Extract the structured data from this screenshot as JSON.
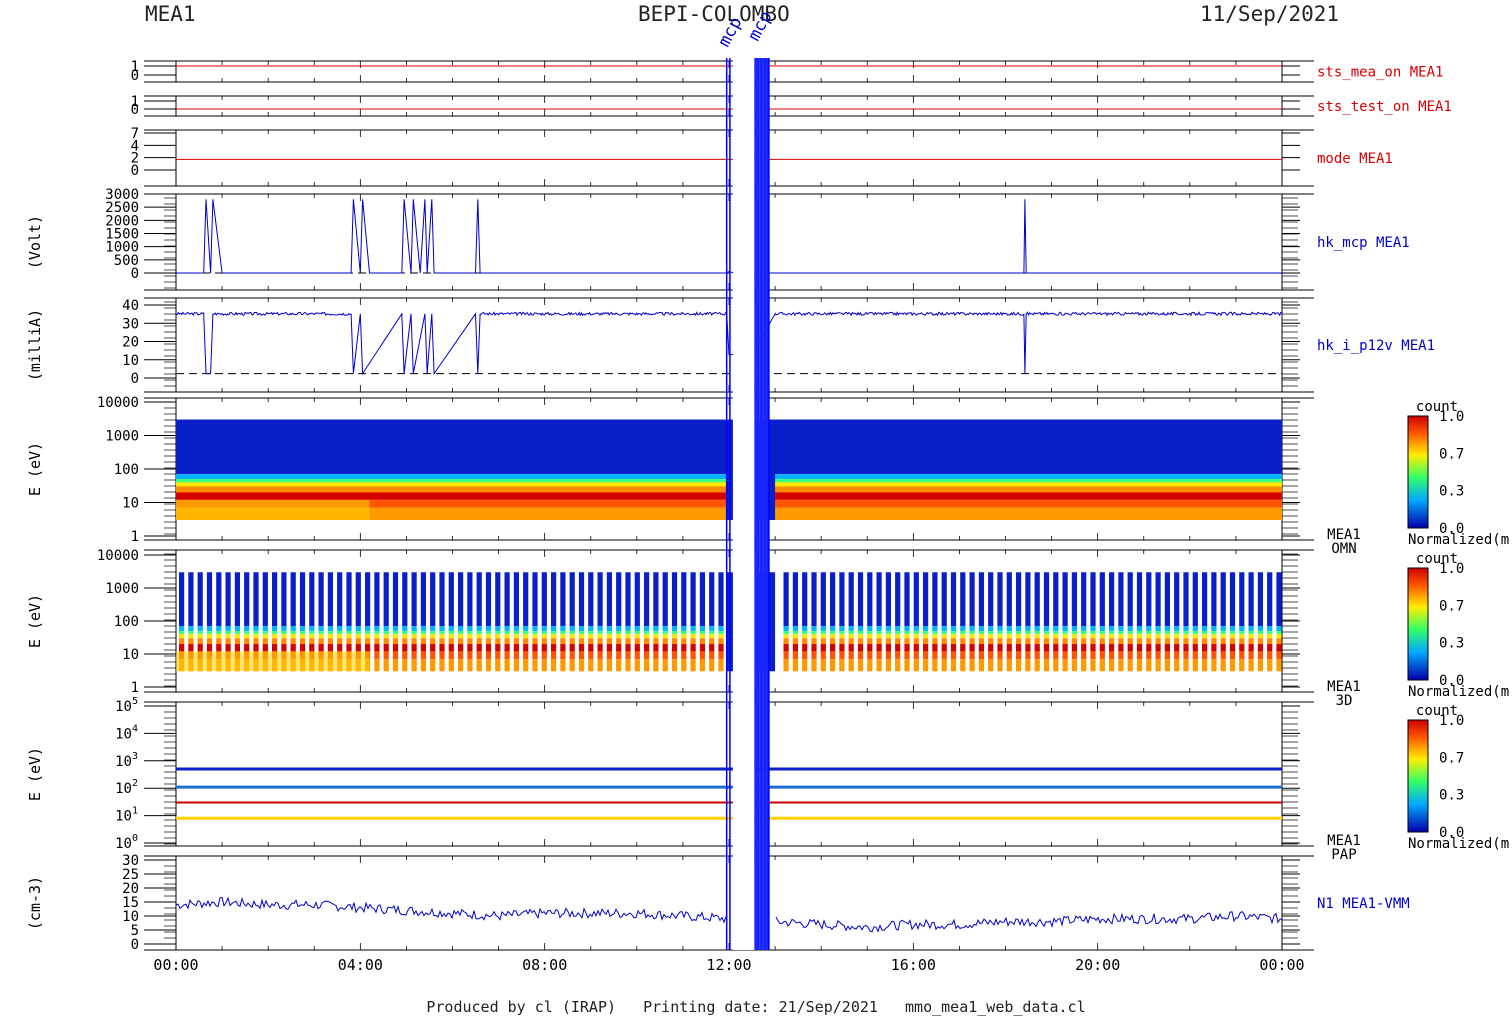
{
  "header": {
    "left": "MEA1",
    "center": "BEPI-COLOMBO",
    "right": "11/Sep/2021"
  },
  "footer": {
    "text": "Produced by cl (IRAP)   Printing date: 21/Sep/2021   mmo_mea1_web_data.cl"
  },
  "colors": {
    "blue": "#0000cc",
    "red": "#dd0000",
    "axis": "#000000"
  },
  "chart_data": [
    {
      "type": "line",
      "id": "sts_mea_on",
      "label": "sts_mea_on MEA1",
      "label_color": "#dd0000",
      "yticks": [
        "1",
        "0"
      ],
      "ylim": [
        0,
        1
      ],
      "series": [
        {
          "values": [
            1,
            1
          ]
        }
      ]
    },
    {
      "type": "line",
      "id": "sts_test_on",
      "label": "sts_test_on MEA1",
      "label_color": "#dd0000",
      "yticks": [
        "1",
        "0"
      ],
      "ylim": [
        0,
        1
      ],
      "series": [
        {
          "values": [
            0,
            0
          ]
        }
      ]
    },
    {
      "type": "line",
      "id": "mode",
      "label": "mode MEA1",
      "label_color": "#dd0000",
      "yticks": [
        "7",
        "4",
        "2",
        "0"
      ],
      "ylim": [
        0,
        7
      ],
      "series": [
        {
          "values": [
            2,
            2
          ]
        }
      ]
    },
    {
      "type": "line",
      "id": "hk_mcp",
      "label": "hk_mcp MEA1",
      "label_color": "#0000cc",
      "ylabel": "(Volt)",
      "yticks": [
        "3000",
        "2500",
        "2000",
        "1500",
        "1000",
        "500",
        "0"
      ],
      "ylim": [
        0,
        3000
      ],
      "series": [
        {
          "x": [
            0,
            0.6,
            0.65,
            0.75,
            0.8,
            1,
            3.8,
            3.85,
            4,
            4.05,
            4.2,
            4.9,
            4.95,
            5.1,
            5.15,
            5.3,
            5.4,
            5.45,
            5.55,
            5.6,
            6.5,
            6.55,
            6.6,
            11.95,
            12.0,
            12.1,
            12.2,
            13.0,
            18.4,
            18.42,
            18.45,
            24
          ],
          "y": [
            0,
            0,
            2800,
            0,
            2800,
            0,
            0,
            2800,
            0,
            2800,
            0,
            0,
            2800,
            0,
            2800,
            0,
            2800,
            0,
            2800,
            0,
            0,
            2800,
            0,
            0,
            60,
            0,
            0,
            0,
            0,
            2800,
            0,
            0
          ]
        }
      ]
    },
    {
      "type": "line",
      "id": "hk_i_p12v",
      "label": "hk_i_p12v MEA1",
      "label_color": "#0000cc",
      "ylabel": "(milliA)",
      "yticks": [
        "40",
        "30",
        "20",
        "10",
        "0"
      ],
      "ylim": [
        -3,
        47
      ],
      "series": [
        {
          "name": "current",
          "values_note": "",
          "x": [
            0,
            0.6,
            0.65,
            0.75,
            0.8,
            3.8,
            3.85,
            4,
            4.05,
            4.9,
            4.95,
            5.1,
            5.15,
            5.4,
            5.45,
            5.55,
            5.6,
            6.5,
            6.55,
            6.6,
            11.95,
            12.0,
            12.5,
            13.0,
            18.4,
            18.42,
            18.45,
            24
          ],
          "y": [
            41,
            41,
            0,
            0,
            41,
            41,
            0,
            41,
            0,
            41,
            0,
            41,
            0,
            41,
            0,
            41,
            0,
            41,
            0,
            41,
            41,
            13,
            13,
            41,
            41,
            0,
            41,
            41
          ]
        }
      ]
    },
    {
      "type": "heatmap",
      "id": "omn",
      "label": "MEA1",
      "label2": "OMN",
      "ylabel": "E (eV)",
      "yticks": [
        "10000",
        "1000",
        "100",
        "10",
        "1"
      ],
      "ylim": [
        1,
        10000
      ],
      "scale": "log",
      "colorbar": {
        "title": "count",
        "ticks": [
          "1.0",
          "0.7",
          "0.3",
          "0.0"
        ],
        "label": "Normalized(m"
      }
    },
    {
      "type": "heatmap",
      "id": "d3",
      "label": "MEA1",
      "label2": "3D",
      "ylabel": "E (eV)",
      "yticks": [
        "10000",
        "1000",
        "100",
        "10",
        "1"
      ],
      "ylim": [
        1,
        10000
      ],
      "scale": "log",
      "colorbar": {
        "title": "count",
        "ticks": [
          "1.0",
          "0.7",
          "0.3",
          "0.0"
        ],
        "label": "Normalized(m"
      }
    },
    {
      "type": "heatmap",
      "id": "pap",
      "label": "MEA1",
      "label2": "PAP",
      "ylabel": "E (eV)",
      "yticks": [
        "10^5",
        "10^4",
        "10^3",
        "10^2",
        "10^1",
        "10^0"
      ],
      "ylim": [
        1,
        100000
      ],
      "scale": "log",
      "colorbar": {
        "title": "count",
        "ticks": [
          "1.0",
          "0.7",
          "0.3",
          "0.0"
        ],
        "label": "Normalized(m"
      }
    },
    {
      "type": "line",
      "id": "n1",
      "label": "N1 MEA1-VMM",
      "label_color": "#0000cc",
      "ylabel": "(cm-3)",
      "yticks": [
        "30",
        "25",
        "20",
        "15",
        "10",
        "5",
        "0"
      ],
      "ylim": [
        0,
        30
      ],
      "series": [
        {
          "x": [
            0,
            1,
            2,
            3,
            4,
            5,
            6,
            7,
            8,
            9,
            10,
            11,
            12,
            13,
            14,
            15,
            16,
            17,
            18,
            19,
            20,
            21,
            22,
            23,
            24
          ],
          "y": [
            14,
            15,
            14,
            14,
            13,
            12,
            11,
            10,
            11,
            11,
            11,
            10,
            9,
            8,
            7,
            6,
            7,
            7,
            8,
            8,
            9,
            9,
            9,
            10,
            9
          ]
        }
      ]
    }
  ],
  "xaxis": {
    "ticks": [
      "00:00",
      "04:00",
      "08:00",
      "12:00",
      "16:00",
      "20:00",
      "00:00"
    ],
    "range_hours": [
      0,
      24
    ]
  },
  "overlay_labels": [
    "mcp",
    "mcp"
  ]
}
